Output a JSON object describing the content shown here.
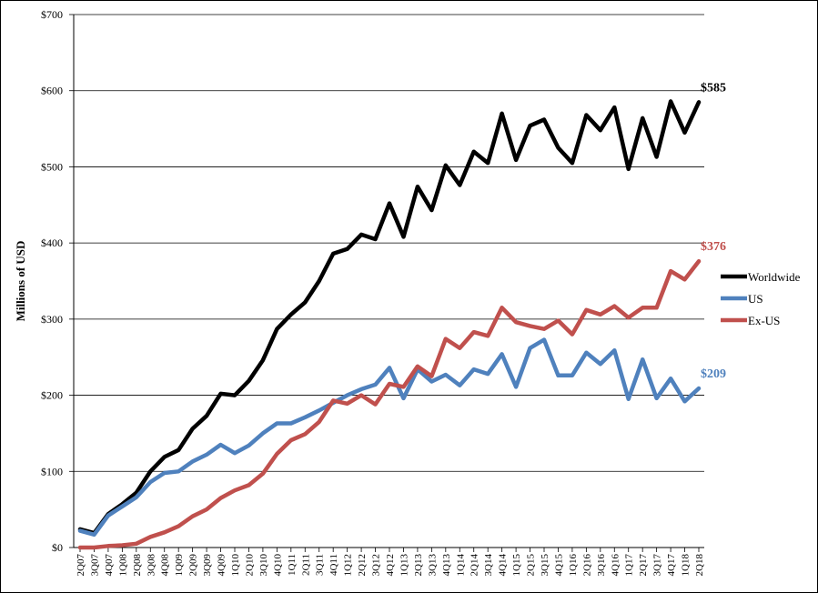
{
  "chart_data": {
    "type": "line",
    "title": "",
    "xlabel": "",
    "ylabel": "Millions of USD",
    "ylim": [
      0,
      700
    ],
    "y_ticks": [
      "$0",
      "$100",
      "$200",
      "$300",
      "$400",
      "$500",
      "$600",
      "$700"
    ],
    "grid": "horizontal",
    "legend": "right",
    "categories": [
      "2Q07",
      "3Q07",
      "4Q07",
      "1Q08",
      "2Q08",
      "3Q08",
      "4Q08",
      "1Q09",
      "2Q09",
      "3Q09",
      "4Q09",
      "1Q10",
      "2Q10",
      "3Q10",
      "4Q10",
      "1Q11",
      "2Q11",
      "3Q11",
      "4Q11",
      "1Q12",
      "2Q12",
      "3Q12",
      "4Q12",
      "1Q13",
      "2Q13",
      "3Q13",
      "4Q13",
      "1Q14",
      "2Q14",
      "3Q14",
      "4Q14",
      "1Q15",
      "2Q15",
      "3Q15",
      "4Q15",
      "1Q16",
      "2Q16",
      "3Q16",
      "4Q16",
      "1Q17",
      "2Q17",
      "3Q17",
      "4Q17",
      "1Q18",
      "2Q18"
    ],
    "series": [
      {
        "name": "Worldwide",
        "color": "#000000",
        "end_label": "$585",
        "values": [
          24,
          19,
          44,
          57,
          72,
          100,
          119,
          128,
          156,
          173,
          202,
          200,
          219,
          246,
          287,
          306,
          322,
          350,
          386,
          392,
          411,
          405,
          452,
          408,
          474,
          443,
          502,
          476,
          520,
          505,
          570,
          509,
          554,
          562,
          525,
          505,
          568,
          548,
          578,
          497,
          564,
          513,
          586,
          545,
          585
        ]
      },
      {
        "name": "US",
        "color": "#4F81BD",
        "end_label": "$209",
        "values": [
          22,
          17,
          42,
          54,
          66,
          86,
          98,
          100,
          113,
          122,
          135,
          124,
          134,
          150,
          163,
          163,
          171,
          180,
          190,
          200,
          208,
          214,
          236,
          196,
          234,
          218,
          227,
          213,
          234,
          228,
          254,
          211,
          262,
          273,
          226,
          226,
          256,
          241,
          259,
          195,
          247,
          196,
          222,
          192,
          209
        ]
      },
      {
        "name": "Ex-US",
        "color": "#C0504D",
        "end_label": "$376",
        "values": [
          0,
          0,
          2,
          3,
          5,
          14,
          20,
          28,
          41,
          50,
          65,
          75,
          82,
          97,
          123,
          141,
          149,
          165,
          193,
          189,
          200,
          188,
          215,
          211,
          238,
          225,
          274,
          262,
          283,
          278,
          315,
          296,
          291,
          287,
          298,
          280,
          312,
          306,
          317,
          302,
          315,
          315,
          363,
          352,
          376
        ]
      }
    ]
  }
}
